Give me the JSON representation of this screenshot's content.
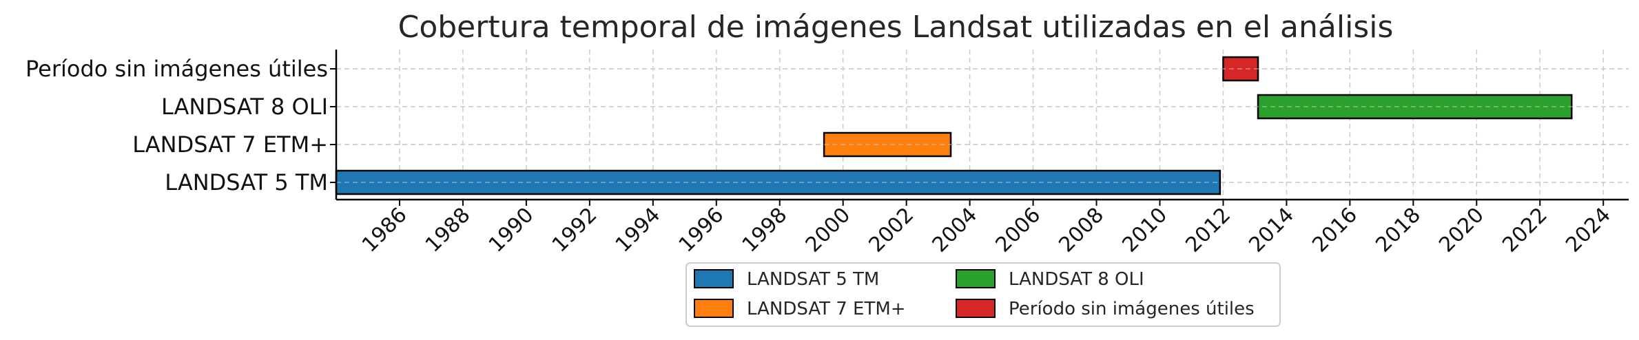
{
  "chart_data": {
    "type": "bar",
    "orientation": "horizontal",
    "title": "Cobertura temporal de imágenes Landsat utilizadas en el análisis",
    "xlabel": "",
    "ylabel": "",
    "xlim": [
      1984.0,
      2024.8
    ],
    "x_ticks": [
      "1986",
      "1988",
      "1990",
      "1992",
      "1994",
      "1996",
      "1998",
      "2000",
      "2002",
      "2004",
      "2006",
      "2008",
      "2010",
      "2012",
      "2014",
      "2016",
      "2018",
      "2020",
      "2022",
      "2024"
    ],
    "grid": true,
    "legend_position": "bottom-center",
    "categories": [
      "LANDSAT 5 TM",
      "LANDSAT 7 ETM+",
      "LANDSAT 8 OLI",
      "Período sin imágenes útiles"
    ],
    "series": [
      {
        "name": "LANDSAT 5 TM",
        "start": 1984.0,
        "end": 2011.9,
        "color": "#1f77b4"
      },
      {
        "name": "LANDSAT 7 ETM+",
        "start": 1999.4,
        "end": 2003.4,
        "color": "#ff7f0e"
      },
      {
        "name": "LANDSAT 8 OLI",
        "start": 2013.1,
        "end": 2023.0,
        "color": "#2ca02c"
      },
      {
        "name": "Período sin imágenes útiles",
        "start": 2012.0,
        "end": 2013.1,
        "color": "#d62728"
      }
    ]
  }
}
